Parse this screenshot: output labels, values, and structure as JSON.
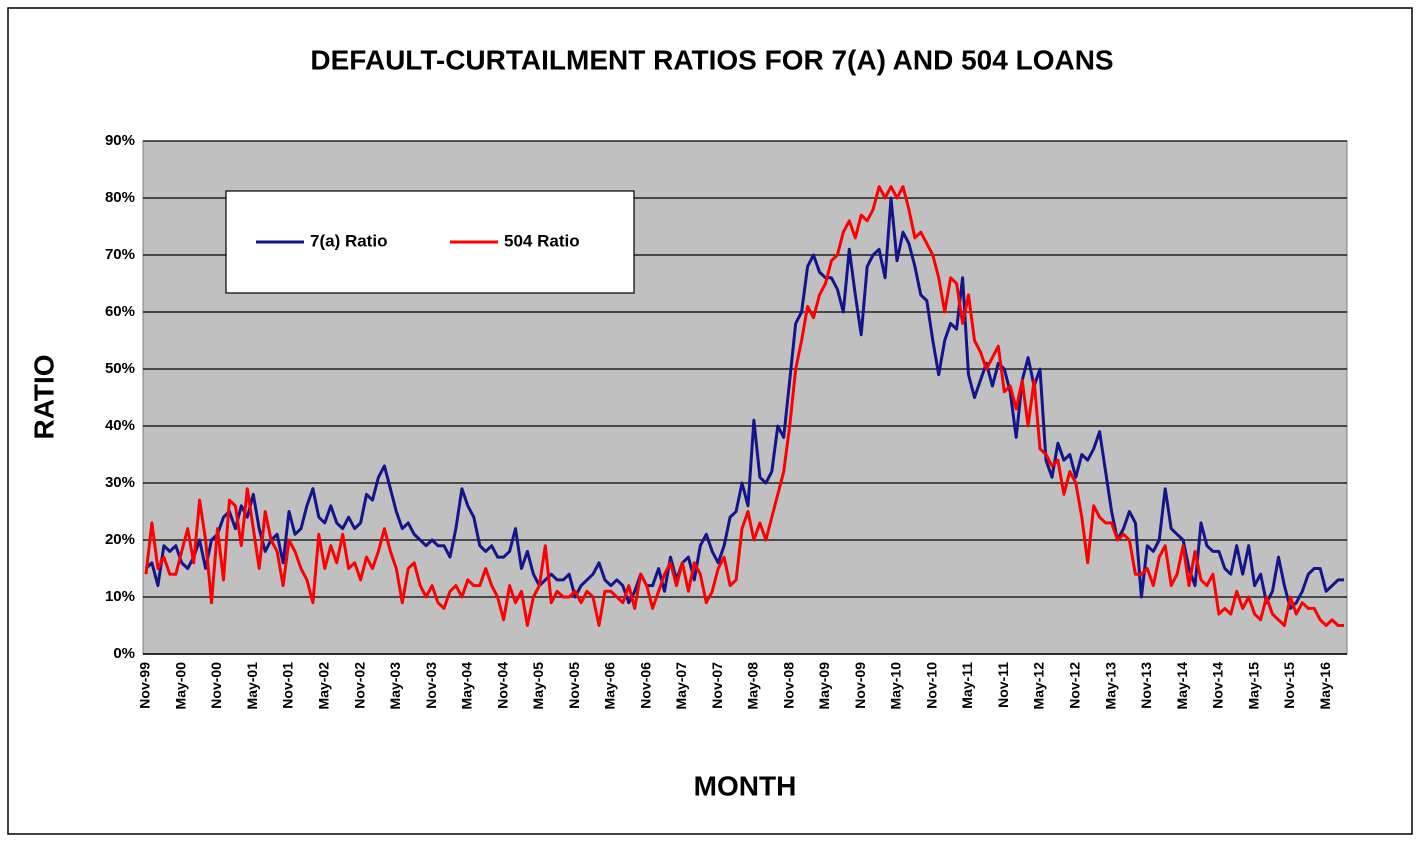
{
  "chart_data": {
    "type": "line",
    "title": "DEFAULT-CURTAILMENT RATIOS FOR 7(A) AND 504 LOANS",
    "y_label": "RATIO",
    "x_label": "MONTH",
    "categories": [
      "Nov-99",
      null,
      null,
      null,
      null,
      null,
      "May-00",
      null,
      null,
      null,
      null,
      null,
      "Nov-00",
      null,
      null,
      null,
      null,
      null,
      "May-01",
      null,
      null,
      null,
      null,
      null,
      "Nov-01",
      null,
      null,
      null,
      null,
      null,
      "May-02",
      null,
      null,
      null,
      null,
      null,
      "Nov-02",
      null,
      null,
      null,
      null,
      null,
      "May-03",
      null,
      null,
      null,
      null,
      null,
      "Nov-03",
      null,
      null,
      null,
      null,
      null,
      "May-04",
      null,
      null,
      null,
      null,
      null,
      "Nov-04",
      null,
      null,
      null,
      null,
      null,
      "May-05",
      null,
      null,
      null,
      null,
      null,
      "Nov-05",
      null,
      null,
      null,
      null,
      null,
      "May-06",
      null,
      null,
      null,
      null,
      null,
      "Nov-06",
      null,
      null,
      null,
      null,
      null,
      "May-07",
      null,
      null,
      null,
      null,
      null,
      "Nov-07",
      null,
      null,
      null,
      null,
      null,
      "May-08",
      null,
      null,
      null,
      null,
      null,
      "Nov-08",
      null,
      null,
      null,
      null,
      null,
      "May-09",
      null,
      null,
      null,
      null,
      null,
      "Nov-09",
      null,
      null,
      null,
      null,
      null,
      "May-10",
      null,
      null,
      null,
      null,
      null,
      "Nov-10",
      null,
      null,
      null,
      null,
      null,
      "May-11",
      null,
      null,
      null,
      null,
      null,
      "Nov-11",
      null,
      null,
      null,
      null,
      null,
      "May-12",
      null,
      null,
      null,
      null,
      null,
      "Nov-12",
      null,
      null,
      null,
      null,
      null,
      "May-13",
      null,
      null,
      null,
      null,
      null,
      "Nov-13",
      null,
      null,
      null,
      null,
      null,
      "May-14",
      null,
      null,
      null,
      null,
      null,
      "Nov-14",
      null,
      null,
      null,
      null,
      null,
      "May-15",
      null,
      null,
      null,
      null,
      null,
      "Nov-15",
      null,
      null,
      null,
      null,
      null,
      "May-16",
      null,
      null,
      null
    ],
    "series": [
      {
        "name": "7(a) Ratio",
        "color": "#14148c",
        "values": [
          15,
          16,
          12,
          19,
          18,
          19,
          16,
          15,
          17,
          20,
          15,
          20,
          21,
          24,
          25,
          22,
          26,
          24,
          28,
          22,
          18,
          20,
          21,
          16,
          25,
          21,
          22,
          26,
          29,
          24,
          23,
          26,
          23,
          22,
          24,
          22,
          23,
          28,
          27,
          31,
          33,
          29,
          25,
          22,
          23,
          21,
          20,
          19,
          20,
          19,
          19,
          17,
          22,
          29,
          26,
          24,
          19,
          18,
          19,
          17,
          17,
          18,
          22,
          15,
          18,
          14,
          12,
          13,
          14,
          13,
          13,
          14,
          10,
          12,
          13,
          14,
          16,
          13,
          12,
          13,
          12,
          9,
          11,
          14,
          12,
          12,
          15,
          11,
          17,
          13,
          16,
          17,
          13,
          19,
          21,
          18,
          16,
          19,
          24,
          25,
          30,
          26,
          41,
          31,
          30,
          32,
          40,
          38,
          48,
          58,
          60,
          68,
          70,
          67,
          66,
          66,
          64,
          60,
          71,
          63,
          56,
          68,
          70,
          71,
          66,
          80,
          69,
          74,
          72,
          68,
          63,
          62,
          55,
          49,
          55,
          58,
          57,
          66,
          49,
          45,
          48,
          51,
          47,
          51,
          50,
          46,
          38,
          48,
          52,
          47,
          50,
          34,
          31,
          37,
          34,
          35,
          31,
          35,
          34,
          36,
          39,
          32,
          25,
          20,
          22,
          25,
          23,
          10,
          19,
          18,
          20,
          29,
          22,
          21,
          20,
          15,
          12,
          23,
          19,
          18,
          18,
          15,
          14,
          19,
          14,
          19,
          12,
          14,
          9,
          11,
          17,
          12,
          8,
          9,
          11,
          14,
          15,
          15,
          11,
          12,
          13,
          13
        ]
      },
      {
        "name": "504 Ratio",
        "color": "#ff0000",
        "values": [
          14,
          23,
          15,
          17,
          14,
          14,
          18,
          22,
          16,
          27,
          20,
          9,
          22,
          13,
          27,
          26,
          19,
          29,
          22,
          15,
          25,
          20,
          18,
          12,
          20,
          18,
          15,
          13,
          9,
          21,
          15,
          19,
          16,
          21,
          15,
          16,
          13,
          17,
          15,
          18,
          22,
          18,
          15,
          9,
          15,
          16,
          12,
          10,
          12,
          9,
          8,
          11,
          12,
          10,
          13,
          12,
          12,
          15,
          12,
          10,
          6,
          12,
          9,
          11,
          5,
          10,
          12,
          19,
          9,
          11,
          10,
          10,
          11,
          9,
          11,
          10,
          5,
          11,
          11,
          10,
          9,
          12,
          8,
          14,
          12,
          8,
          11,
          14,
          16,
          12,
          16,
          11,
          16,
          14,
          9,
          11,
          15,
          17,
          12,
          13,
          22,
          25,
          20,
          23,
          20,
          24,
          28,
          32,
          40,
          50,
          55,
          61,
          59,
          63,
          65,
          69,
          70,
          74,
          76,
          73,
          77,
          76,
          78,
          82,
          80,
          82,
          80,
          82,
          78,
          73,
          74,
          72,
          70,
          66,
          60,
          66,
          65,
          58,
          63,
          55,
          53,
          50,
          52,
          54,
          46,
          47,
          43,
          48,
          40,
          48,
          36,
          35,
          33,
          34,
          28,
          32,
          30,
          24,
          16,
          26,
          24,
          23,
          23,
          20,
          21,
          20,
          14,
          14,
          15,
          12,
          17,
          19,
          12,
          14,
          19,
          12,
          18,
          13,
          12,
          14,
          7,
          8,
          7,
          11,
          8,
          10,
          7,
          6,
          10,
          7,
          6,
          5,
          10,
          7,
          9,
          8,
          8,
          6,
          5,
          6,
          5,
          5
        ]
      }
    ],
    "ylim": [
      0,
      90
    ],
    "yticks": [
      {
        "value": 0,
        "label": "0%"
      },
      {
        "value": 10,
        "label": "10%"
      },
      {
        "value": 20,
        "label": "20%"
      },
      {
        "value": 30,
        "label": "30%"
      },
      {
        "value": 40,
        "label": "40%"
      },
      {
        "value": 50,
        "label": "50%"
      },
      {
        "value": 60,
        "label": "60%"
      },
      {
        "value": 70,
        "label": "70%"
      },
      {
        "value": 80,
        "label": "80%"
      },
      {
        "value": 90,
        "label": "90%"
      }
    ],
    "grid": true,
    "legend": "upper left",
    "plot_background": "#c0c0c0"
  }
}
